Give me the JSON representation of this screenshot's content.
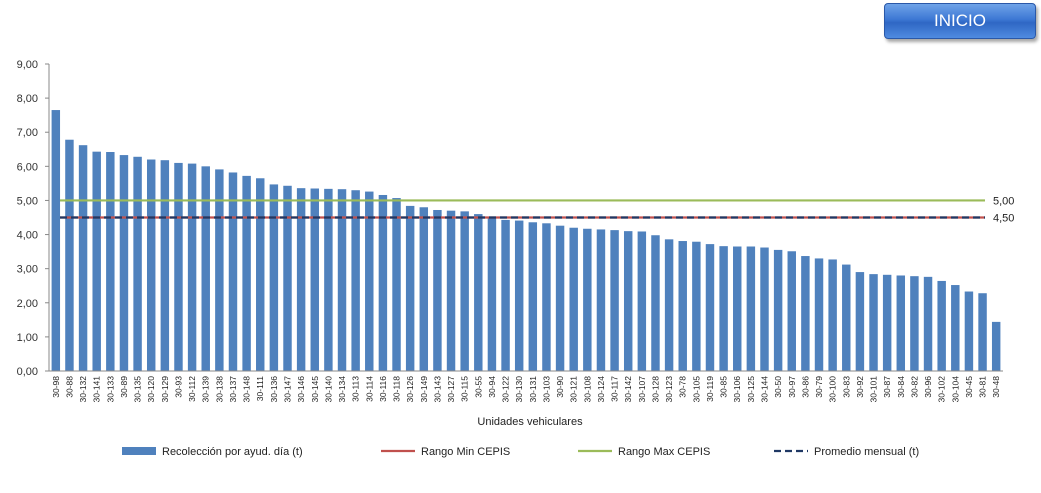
{
  "button": {
    "inicio_label": "INICIO"
  },
  "chart_data": {
    "type": "bar",
    "title": "",
    "xlabel": "Unidades vehiculares",
    "ylabel": "",
    "ylim": [
      0,
      9
    ],
    "y_ticks": [
      "0,00",
      "1,00",
      "2,00",
      "3,00",
      "4,00",
      "5,00",
      "6,00",
      "7,00",
      "8,00",
      "9,00"
    ],
    "categories": [
      "30-98",
      "30-88",
      "30-132",
      "30-141",
      "30-133",
      "30-89",
      "30-135",
      "30-120",
      "30-129",
      "30-93",
      "30-112",
      "30-139",
      "30-138",
      "30-137",
      "30-148",
      "30-111",
      "30-136",
      "30-147",
      "30-146",
      "30-145",
      "30-140",
      "30-134",
      "30-113",
      "30-114",
      "30-116",
      "30-118",
      "30-126",
      "30-149",
      "30-143",
      "30-127",
      "30-115",
      "30-55",
      "30-94",
      "30-122",
      "30-130",
      "30-131",
      "30-103",
      "30-90",
      "30-121",
      "30-108",
      "30-124",
      "30-117",
      "30-142",
      "30-107",
      "30-128",
      "30-123",
      "30-78",
      "30-105",
      "30-119",
      "30-85",
      "30-106",
      "30-125",
      "30-144",
      "30-50",
      "30-97",
      "30-86",
      "30-79",
      "30-100",
      "30-83",
      "30-92",
      "30-101",
      "30-87",
      "30-84",
      "30-82",
      "30-96",
      "30-102",
      "30-104",
      "30-45",
      "30-81",
      "30-48"
    ],
    "series": [
      {
        "name": "Recolección por ayud. día (t)",
        "values": [
          7.65,
          6.78,
          6.62,
          6.43,
          6.42,
          6.33,
          6.28,
          6.2,
          6.18,
          6.1,
          6.08,
          6.0,
          5.91,
          5.82,
          5.72,
          5.65,
          5.47,
          5.43,
          5.36,
          5.35,
          5.34,
          5.33,
          5.3,
          5.26,
          5.16,
          5.07,
          4.84,
          4.8,
          4.72,
          4.7,
          4.68,
          4.6,
          4.52,
          4.43,
          4.41,
          4.36,
          4.33,
          4.26,
          4.2,
          4.17,
          4.15,
          4.13,
          4.1,
          4.09,
          3.98,
          3.86,
          3.81,
          3.79,
          3.72,
          3.66,
          3.65,
          3.65,
          3.62,
          3.55,
          3.51,
          3.37,
          3.3,
          3.27,
          3.12,
          2.9,
          2.84,
          2.82,
          2.8,
          2.78,
          2.76,
          2.64,
          2.52,
          2.33,
          2.28,
          1.44
        ]
      }
    ],
    "reference_lines": [
      {
        "name": "Rango Min CEPIS",
        "value": 4.5,
        "color": "#c0504d",
        "style": "solid"
      },
      {
        "name": "Rango Max CEPIS",
        "value": 5.0,
        "color": "#9bbb59",
        "style": "solid"
      },
      {
        "name": "Promedio mensual (t)",
        "value": 4.5,
        "color": "#1f3864",
        "style": "dashed"
      }
    ],
    "line_labels": [
      "5,00",
      "4,50"
    ],
    "bar_color": "#4f81bd",
    "legend_position": "bottom"
  }
}
